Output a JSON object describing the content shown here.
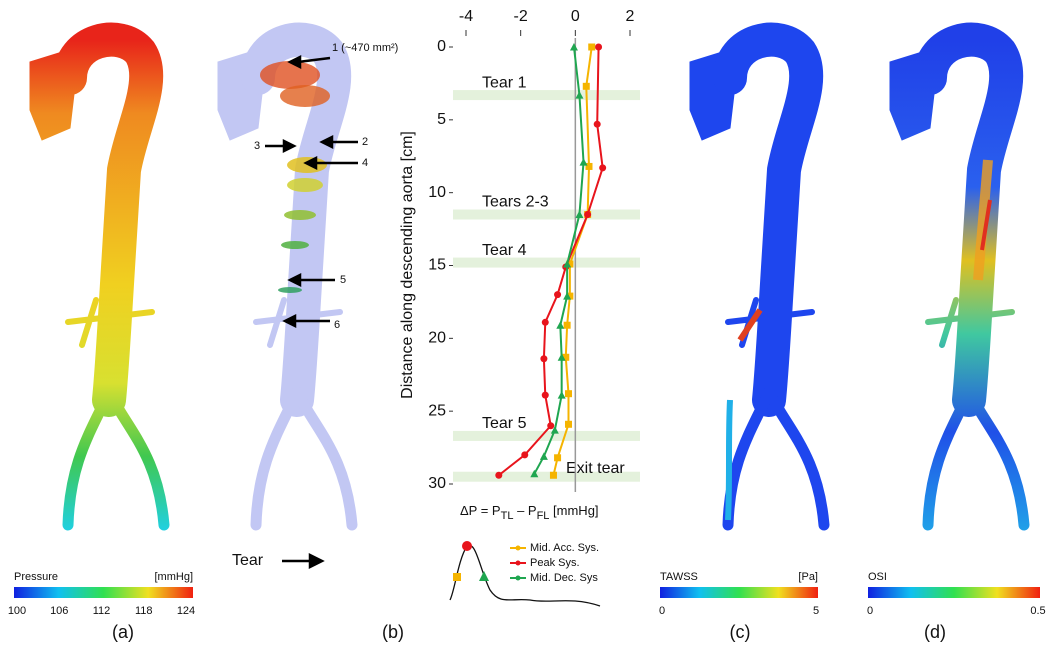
{
  "chart_data": {
    "type": "line",
    "xlabel": [
      "ΔP = P",
      "TL",
      " – P",
      "FL",
      " [mmHg]"
    ],
    "ylabel": "Distance along descending aorta  [cm]",
    "xlim": [
      -4,
      2
    ],
    "xticks": [
      -4,
      -2,
      0,
      2
    ],
    "ylim": [
      0,
      30
    ],
    "yticks": [
      0,
      5,
      10,
      15,
      20,
      25,
      30
    ],
    "annotations": [
      {
        "text": "Tear 1",
        "y": 3.3
      },
      {
        "text": "Tears 2-3",
        "y": 11.5
      },
      {
        "text": "Tear 4",
        "y": 14.8
      },
      {
        "text": "Tear 5",
        "y": 26.7
      },
      {
        "text": "Exit tear",
        "y": 29.5
      }
    ],
    "series": [
      {
        "name": "Mid. Acc. Sys.",
        "color": "#f5b400",
        "marker": "square",
        "x": [
          0.6,
          0.4,
          0.5,
          0.45,
          -0.2,
          -0.2,
          -0.3,
          -0.35,
          -0.25,
          -0.25,
          -0.65,
          -0.8
        ],
        "y": [
          0,
          2.7,
          8.2,
          11.5,
          14.9,
          17.1,
          19.1,
          21.3,
          23.8,
          25.9,
          28.2,
          29.4
        ]
      },
      {
        "name": "Peak Sys.",
        "color": "#e8141c",
        "marker": "circle",
        "x": [
          0.85,
          0.8,
          1.0,
          0.45,
          -0.35,
          -0.65,
          -1.1,
          -1.15,
          -1.1,
          -0.9,
          -1.85,
          -2.8
        ],
        "y": [
          0,
          5.3,
          8.3,
          11.5,
          15.1,
          17,
          18.9,
          21.4,
          23.9,
          26,
          28,
          29.4
        ]
      },
      {
        "name": "Mid. Dec. Sys",
        "color": "#1fa650",
        "marker": "triangle",
        "x": [
          -0.05,
          0.15,
          0.3,
          0.15,
          -0.3,
          -0.3,
          -0.55,
          -0.5,
          -0.5,
          -0.75,
          -1.15,
          -1.5
        ],
        "y": [
          0,
          3.3,
          7.9,
          11.5,
          14.9,
          17.1,
          19.1,
          21.3,
          23.9,
          26.3,
          28.1,
          29.3
        ]
      }
    ]
  },
  "panels": {
    "labels": [
      "(a)",
      "(b)",
      "(c)",
      "(d)"
    ],
    "tear_key": "Tear",
    "callouts": [
      "1 (~470 mm²)",
      "2",
      "3",
      "4",
      "5",
      "6"
    ],
    "colorbars": [
      {
        "title": "Pressure",
        "unit": "[mmHg]",
        "lim": [
          100,
          124
        ],
        "ticks": [
          100,
          106,
          112,
          118,
          124
        ]
      },
      {
        "title": "TAWSS",
        "unit": "[Pa]",
        "lim": [
          0,
          5
        ],
        "ticks": [
          0,
          5
        ]
      },
      {
        "title": "OSI",
        "lim": [
          0,
          0.5
        ],
        "ticks": [
          0,
          0.5
        ]
      }
    ]
  }
}
